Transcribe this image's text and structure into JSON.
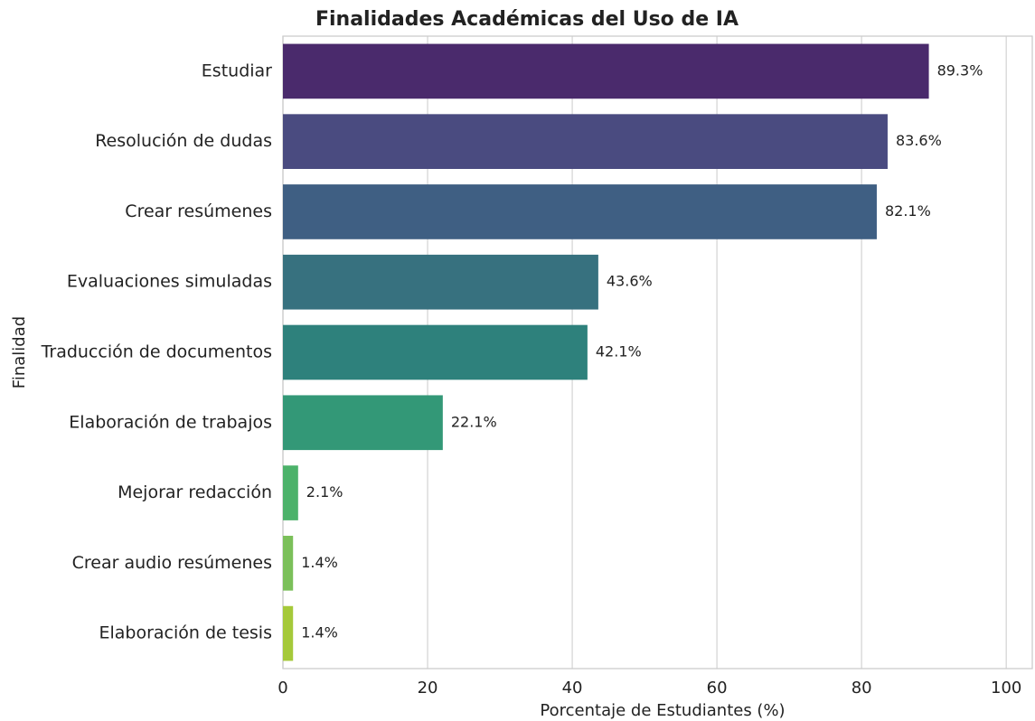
{
  "chart_data": {
    "type": "barh",
    "title": "Finalidades Académicas del Uso de IA",
    "xlabel": "Porcentaje de Estudiantes (%)",
    "ylabel": "Finalidad",
    "categories": [
      "Estudiar",
      "Resolución de dudas",
      "Crear resúmenes",
      "Evaluaciones simuladas",
      "Traducción de documentos",
      "Elaboración de trabajos",
      "Mejorar redacción",
      "Crear audio resúmenes",
      "Elaboración de tesis"
    ],
    "values": [
      89.3,
      83.6,
      82.1,
      43.6,
      42.1,
      22.1,
      2.1,
      1.4,
      1.4
    ],
    "value_labels": [
      "89.3%",
      "83.6%",
      "82.1%",
      "43.6%",
      "42.1%",
      "22.1%",
      "2.1%",
      "1.4%",
      "1.4%"
    ],
    "colors": [
      "#4a2a6c",
      "#4a4b80",
      "#3f5f83",
      "#37717f",
      "#2e817c",
      "#339877",
      "#4cb26a",
      "#7bc05a",
      "#a5c93a"
    ],
    "xlim": [
      0,
      103.6
    ],
    "xticks": [
      0,
      20,
      40,
      60,
      80,
      100
    ],
    "grid": true
  }
}
